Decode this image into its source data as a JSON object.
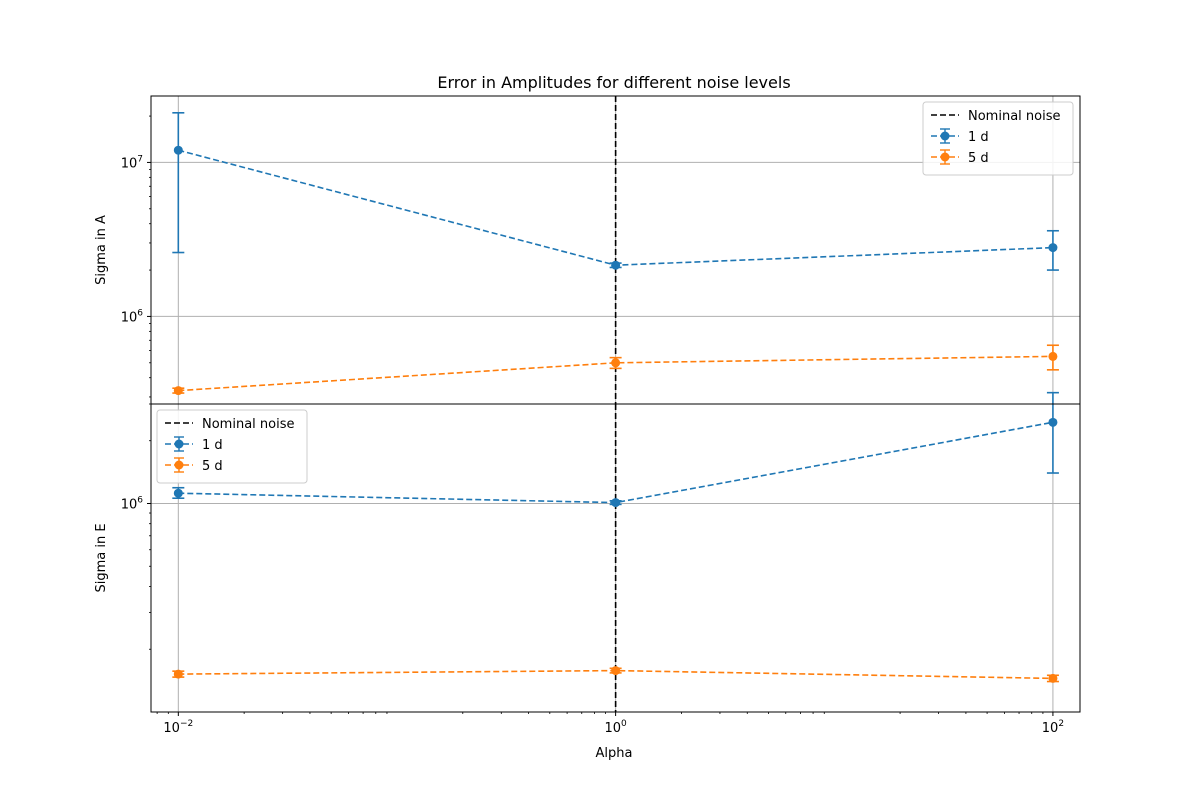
{
  "chart_data": {
    "type": "line",
    "title": "Error in Amplitudes for different noise levels",
    "xlabel": "Alpha",
    "x_scale": "log",
    "xlim": [
      0.0075,
      133
    ],
    "x": [
      0.01,
      1,
      100
    ],
    "x_ticks": [
      0.01,
      1,
      100
    ],
    "x_tick_labels": [
      {
        "base": "10",
        "exp": "−2"
      },
      {
        "base": "10",
        "exp": "0"
      },
      {
        "base": "10",
        "exp": "2"
      }
    ],
    "vline": {
      "x": 1,
      "label": "Nominal noise",
      "color": "#000000",
      "style": "dashed"
    },
    "colors": {
      "series1": "#1f77b4",
      "series2": "#ff7f0e",
      "grid": "#b0b0b0"
    },
    "grid": true,
    "panels": [
      {
        "ylabel": "Sigma in A",
        "y_scale": "log",
        "ylim": [
          270000,
          27000000
        ],
        "y_ticks": [
          1000000,
          10000000
        ],
        "y_tick_labels": [
          {
            "base": "10",
            "exp": "6"
          },
          {
            "base": "10",
            "exp": "7"
          }
        ],
        "legend_position": "upper right",
        "series": [
          {
            "name": "1 d",
            "values": [
              12000000,
              2150000,
              2800000
            ],
            "err_low": [
              2600000,
              2080000,
              2000000
            ],
            "err_high": [
              21000000,
              2220000,
              3600000
            ]
          },
          {
            "name": "5 d",
            "values": [
              330000,
              500000,
              550000
            ],
            "err_low": [
              318000,
              460000,
              450000
            ],
            "err_high": [
              342000,
              540000,
              650000
            ]
          }
        ]
      },
      {
        "ylabel": "Sigma in E",
        "y_scale": "log",
        "ylim": [
          100000,
          3000000
        ],
        "y_ticks": [
          1000000
        ],
        "y_tick_labels": [
          {
            "base": "10",
            "exp": "6"
          }
        ],
        "legend_position": "upper left",
        "series": [
          {
            "name": "1 d",
            "values": [
              1120000,
              1010000,
              2450000
            ],
            "err_low": [
              1060000,
              990000,
              1400000
            ],
            "err_high": [
              1190000,
              1030000,
              3400000
            ]
          },
          {
            "name": "5 d",
            "values": [
              152000,
              158000,
              145000
            ],
            "err_low": [
              147000,
              154000,
              140000
            ],
            "err_high": [
              157000,
              162000,
              150000
            ]
          }
        ]
      }
    ]
  }
}
